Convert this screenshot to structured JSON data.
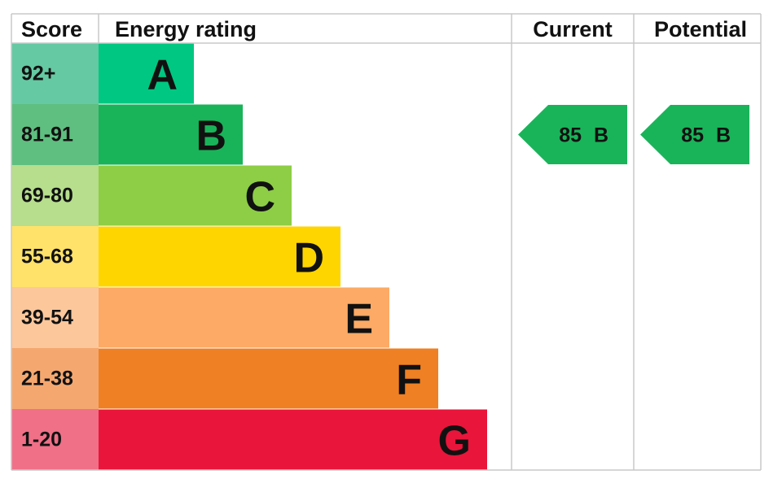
{
  "header": {
    "score": "Score",
    "rating": "Energy rating",
    "current": "Current",
    "potential": "Potential"
  },
  "rows": [
    {
      "score": "92+",
      "band": "A",
      "color": "#00c781",
      "score_color": "#65c9a3"
    },
    {
      "score": "81-91",
      "band": "B",
      "color": "#19b459",
      "score_color": "#5fbf80"
    },
    {
      "score": "69-80",
      "band": "C",
      "color": "#8dce46",
      "score_color": "#b6de8c"
    },
    {
      "score": "55-68",
      "band": "D",
      "color": "#ffd500",
      "score_color": "#ffe26a"
    },
    {
      "score": "39-54",
      "band": "E",
      "color": "#fcaa65",
      "score_color": "#fdc79c"
    },
    {
      "score": "21-38",
      "band": "F",
      "color": "#ef8023",
      "score_color": "#f4a870"
    },
    {
      "score": "1-20",
      "band": "G",
      "color": "#e9153b",
      "score_color": "#f07088"
    }
  ],
  "current": {
    "value": 85,
    "band": "B"
  },
  "potential": {
    "value": 85,
    "band": "B"
  }
}
